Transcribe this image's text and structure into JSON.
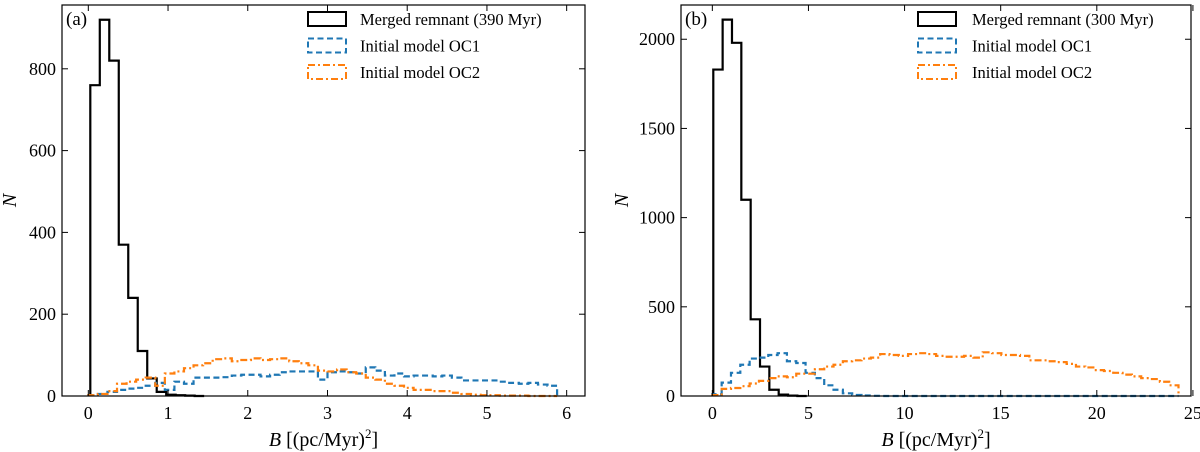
{
  "chart_data": [
    {
      "type": "histogram",
      "panel_label": "(a)",
      "xlabel": "B [(pc/Myr)2]",
      "xlabel_parts": {
        "var": "B",
        "unit": " [(pc/Myr)",
        "sup": "2",
        "close": "]"
      },
      "ylabel": "N",
      "xlim": [
        -0.33,
        6.23
      ],
      "ylim": [
        0,
        956
      ],
      "xticks": [
        0,
        1,
        2,
        3,
        4,
        5,
        6
      ],
      "yticks": [
        0,
        200,
        400,
        600,
        800
      ],
      "legend_position": "top-right",
      "series": [
        {
          "name": "Merged remnant (390 Myr)",
          "color": "#000000",
          "style": "solid",
          "bin_start": 0.025,
          "bin_width": 0.119,
          "values": [
            760,
            920,
            820,
            370,
            240,
            110,
            43,
            10,
            3,
            2,
            1,
            0
          ]
        },
        {
          "name": "Initial model OC1",
          "color": "#1f77b4",
          "style": "dashed",
          "bin_start": 0,
          "bin_width": 0.12,
          "values": [
            2,
            5,
            10,
            15,
            18,
            20,
            25,
            32,
            15,
            35,
            30,
            45,
            45,
            45,
            46,
            50,
            52,
            52,
            48,
            52,
            58,
            60,
            60,
            60,
            40,
            58,
            60,
            58,
            55,
            70,
            62,
            50,
            55,
            48,
            50,
            50,
            48,
            50,
            45,
            38,
            38,
            38,
            38,
            35,
            32,
            30,
            32,
            28,
            25
          ]
        },
        {
          "name": "Initial model OC2",
          "color": "#ff7f0e",
          "style": "dashdot",
          "bin_start": 0,
          "bin_width": 0.12,
          "values": [
            2,
            5,
            12,
            30,
            35,
            40,
            45,
            25,
            55,
            60,
            68,
            75,
            80,
            90,
            92,
            85,
            88,
            92,
            88,
            90,
            92,
            85,
            80,
            75,
            62,
            60,
            65,
            58,
            55,
            45,
            40,
            30,
            25,
            20,
            15,
            15,
            12,
            12,
            8,
            5,
            3,
            2,
            2,
            1,
            1,
            1,
            0,
            0,
            0
          ]
        }
      ]
    },
    {
      "type": "histogram",
      "panel_label": "(b)",
      "xlabel": "B [(pc/Myr)2]",
      "xlabel_parts": {
        "var": "B",
        "unit": " [(pc/Myr)",
        "sup": "2",
        "close": "]"
      },
      "ylabel": "N",
      "xlim": [
        -1.63,
        24.9
      ],
      "ylim": [
        0,
        2192
      ],
      "xticks": [
        0,
        5,
        10,
        15,
        20,
        25
      ],
      "yticks": [
        0,
        500,
        1000,
        1500,
        2000
      ],
      "legend_position": "top-right",
      "series": [
        {
          "name": "Merged remnant (300 Myr)",
          "color": "#000000",
          "style": "solid",
          "bin_start": 0.05,
          "bin_width": 0.486,
          "values": [
            1830,
            2110,
            1980,
            1100,
            430,
            165,
            35,
            8,
            2,
            0
          ]
        },
        {
          "name": "Initial model OC1",
          "color": "#1f77b4",
          "style": "dashed",
          "bin_start": 0,
          "bin_width": 0.485,
          "values": [
            10,
            75,
            130,
            175,
            210,
            215,
            230,
            240,
            195,
            185,
            130,
            100,
            60,
            35,
            15,
            6,
            3,
            1,
            0,
            0,
            0,
            0,
            0,
            0,
            0,
            0,
            0,
            0,
            0,
            0,
            0,
            0,
            0,
            0,
            0,
            0,
            0,
            0,
            0,
            0,
            0,
            0,
            0,
            0,
            0,
            0,
            0,
            0,
            0,
            0
          ]
        },
        {
          "name": "Initial model OC2",
          "color": "#ff7f0e",
          "style": "dashdot",
          "bin_start": 0,
          "bin_width": 0.485,
          "values": [
            5,
            40,
            45,
            55,
            70,
            85,
            100,
            110,
            105,
            125,
            125,
            150,
            165,
            175,
            195,
            200,
            210,
            215,
            235,
            230,
            225,
            235,
            240,
            235,
            225,
            220,
            220,
            225,
            215,
            245,
            240,
            230,
            230,
            225,
            200,
            200,
            195,
            190,
            180,
            165,
            160,
            145,
            140,
            130,
            120,
            110,
            100,
            95,
            80,
            60
          ]
        }
      ]
    }
  ]
}
